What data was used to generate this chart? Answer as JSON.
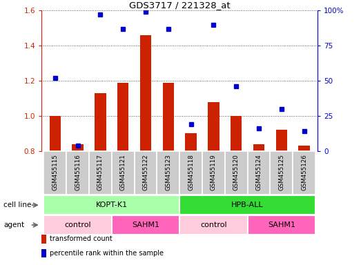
{
  "title": "GDS3717 / 221328_at",
  "samples": [
    "GSM455115",
    "GSM455116",
    "GSM455117",
    "GSM455121",
    "GSM455122",
    "GSM455123",
    "GSM455118",
    "GSM455119",
    "GSM455120",
    "GSM455124",
    "GSM455125",
    "GSM455126"
  ],
  "red_values": [
    1.0,
    0.84,
    1.13,
    1.19,
    1.46,
    1.19,
    0.9,
    1.08,
    1.0,
    0.84,
    0.92,
    0.83
  ],
  "blue_values": [
    52,
    4,
    97,
    87,
    99,
    87,
    19,
    90,
    46,
    16,
    30,
    14
  ],
  "ylim_left": [
    0.8,
    1.6
  ],
  "ylim_right": [
    0,
    100
  ],
  "yticks_left": [
    0.8,
    1.0,
    1.2,
    1.4,
    1.6
  ],
  "yticks_right": [
    0,
    25,
    50,
    75,
    100
  ],
  "ytick_labels_right": [
    "0",
    "25",
    "50",
    "75",
    "100%"
  ],
  "cell_line_groups": [
    {
      "label": "KOPT-K1",
      "start": 0,
      "end": 6,
      "color": "#AAFFAA"
    },
    {
      "label": "HPB-ALL",
      "start": 6,
      "end": 12,
      "color": "#33DD33"
    }
  ],
  "agent_groups": [
    {
      "label": "control",
      "start": 0,
      "end": 3,
      "color": "#FFCCDD"
    },
    {
      "label": "SAHM1",
      "start": 3,
      "end": 6,
      "color": "#FF66BB"
    },
    {
      "label": "control",
      "start": 6,
      "end": 9,
      "color": "#FFCCDD"
    },
    {
      "label": "SAHM1",
      "start": 9,
      "end": 12,
      "color": "#FF66BB"
    }
  ],
  "bar_color": "#CC2200",
  "dot_color": "#0000CC",
  "bar_width": 0.5,
  "grid_color": "#555555",
  "bg_color": "#FFFFFF",
  "tick_bg_color": "#CCCCCC",
  "legend_items": [
    {
      "color": "#CC2200",
      "label": "transformed count"
    },
    {
      "color": "#0000CC",
      "label": "percentile rank within the sample"
    }
  ],
  "cell_line_label": "cell line",
  "agent_label": "agent"
}
